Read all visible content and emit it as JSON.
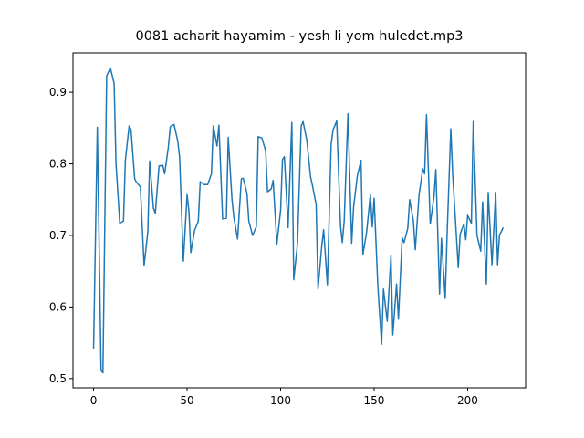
{
  "chart_data": {
    "type": "line",
    "title": "0081 acharit hayamim - yesh li yom huledet.mp3",
    "x": [
      0,
      2,
      4,
      5,
      7,
      9,
      11,
      12,
      14,
      16,
      17,
      19,
      20,
      22,
      23,
      25,
      27,
      29,
      30,
      32,
      33,
      35,
      37,
      38,
      40,
      41,
      43,
      45,
      46,
      48,
      50,
      51,
      52,
      54,
      56,
      57,
      59,
      61,
      63,
      64,
      66,
      67,
      69,
      71,
      72,
      74,
      75,
      77,
      79,
      80,
      82,
      83,
      85,
      87,
      88,
      90,
      92,
      93,
      95,
      96,
      98,
      100,
      101,
      102,
      104,
      106,
      107,
      109,
      111,
      112,
      114,
      116,
      117,
      119,
      120,
      122,
      123,
      125,
      127,
      128,
      130,
      132,
      133,
      134,
      136,
      138,
      139,
      141,
      143,
      144,
      146,
      148,
      149,
      150,
      152,
      154,
      155,
      157,
      159,
      160,
      162,
      163,
      165,
      166,
      168,
      169,
      171,
      172,
      174,
      176,
      177,
      178,
      180,
      182,
      183,
      185,
      186,
      188,
      189,
      191,
      192,
      195,
      196,
      198,
      199,
      200,
      202,
      203,
      205,
      207,
      208,
      210,
      211,
      213,
      215,
      216,
      217,
      219
    ],
    "series": [
      {
        "color": "#1f77b4",
        "values": [
          0.542,
          0.851,
          0.511,
          0.508,
          0.923,
          0.934,
          0.912,
          0.8,
          0.717,
          0.72,
          0.805,
          0.853,
          0.848,
          0.779,
          0.774,
          0.768,
          0.658,
          0.705,
          0.804,
          0.738,
          0.731,
          0.797,
          0.798,
          0.786,
          0.824,
          0.852,
          0.855,
          0.832,
          0.809,
          0.664,
          0.757,
          0.733,
          0.676,
          0.707,
          0.72,
          0.775,
          0.771,
          0.771,
          0.786,
          0.853,
          0.825,
          0.854,
          0.723,
          0.724,
          0.837,
          0.75,
          0.725,
          0.695,
          0.779,
          0.78,
          0.759,
          0.72,
          0.7,
          0.712,
          0.838,
          0.836,
          0.818,
          0.761,
          0.765,
          0.777,
          0.688,
          0.735,
          0.806,
          0.81,
          0.711,
          0.858,
          0.638,
          0.688,
          0.853,
          0.859,
          0.833,
          0.782,
          0.77,
          0.743,
          0.625,
          0.685,
          0.708,
          0.631,
          0.827,
          0.847,
          0.86,
          0.714,
          0.69,
          0.72,
          0.87,
          0.689,
          0.739,
          0.783,
          0.805,
          0.673,
          0.705,
          0.757,
          0.712,
          0.752,
          0.628,
          0.548,
          0.625,
          0.58,
          0.672,
          0.561,
          0.632,
          0.583,
          0.697,
          0.69,
          0.71,
          0.75,
          0.72,
          0.68,
          0.756,
          0.793,
          0.786,
          0.869,
          0.716,
          0.754,
          0.792,
          0.618,
          0.696,
          0.612,
          0.7,
          0.849,
          0.785,
          0.655,
          0.702,
          0.716,
          0.694,
          0.728,
          0.717,
          0.859,
          0.7,
          0.678,
          0.747,
          0.632,
          0.76,
          0.659,
          0.76,
          0.659,
          0.7,
          0.711
        ]
      }
    ],
    "xlim": [
      -11,
      231
    ],
    "ylim": [
      0.487,
      0.955
    ],
    "xticks": [
      0,
      50,
      100,
      150,
      200
    ],
    "yticks": [
      0.5,
      0.6,
      0.7,
      0.8,
      0.9
    ]
  }
}
